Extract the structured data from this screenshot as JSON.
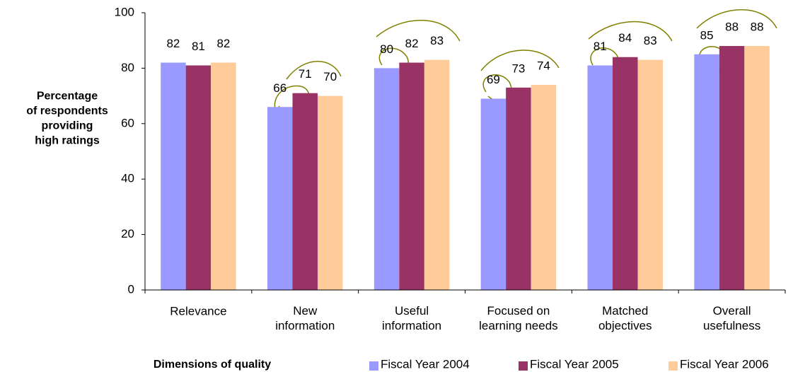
{
  "chart_data": {
    "type": "bar",
    "categories": [
      "Relevance",
      "New\ninformation",
      "Useful\ninformation",
      "Focused on\nlearning needs",
      "Matched\nobjectives",
      "Overall\nusefulness"
    ],
    "series": [
      {
        "name": "Fiscal Year 2004",
        "color": "#9999ff",
        "values": [
          82,
          66,
          80,
          69,
          81,
          85
        ]
      },
      {
        "name": "Fiscal Year 2005",
        "color": "#993366",
        "values": [
          81,
          71,
          82,
          73,
          84,
          88
        ]
      },
      {
        "name": "Fiscal Year 2006",
        "color": "#ffcc99",
        "values": [
          82,
          70,
          83,
          74,
          83,
          88
        ]
      }
    ],
    "y_label": "Percentage\nof respondents\nproviding\nhigh ratings",
    "x_label": "Dimensions of quality",
    "ylim": [
      0,
      100
    ],
    "yticks": [
      0,
      20,
      40,
      60,
      80,
      100
    ],
    "grid": false,
    "legend": "bottom"
  }
}
